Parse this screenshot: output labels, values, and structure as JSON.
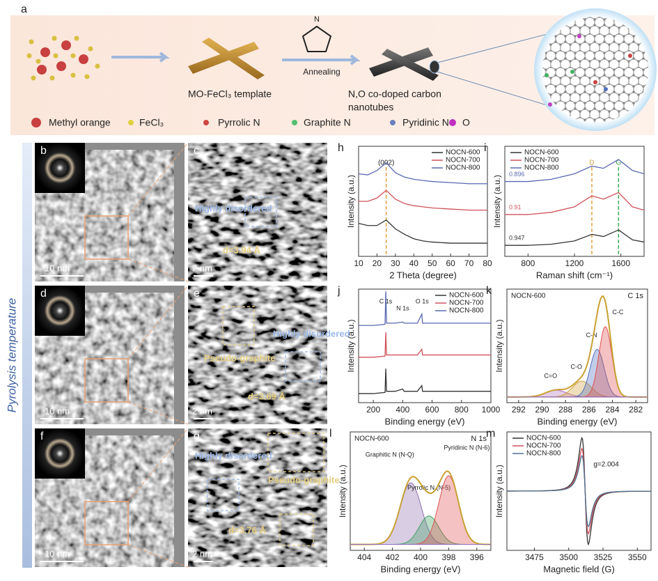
{
  "panel_a": {
    "label": "a",
    "pyrrole_atom": "N",
    "template": "MO-FeCl₃ template",
    "step": "Annealing",
    "product": [
      "N,O co-doped carbon",
      "nanotubes"
    ],
    "legend": [
      "Methyl orange",
      "FeCl₃",
      "Pyrrolic N",
      "Graphite N",
      "Pyridinic N",
      "O"
    ]
  },
  "side_label": "Pyrolysis temperature",
  "tem": [
    {
      "label": "b",
      "scale_bar": "10 nm"
    },
    {
      "label": "c",
      "scale_bar": "2 nm",
      "annotations": [
        "Highly disordered",
        "d=3.94 Å"
      ]
    },
    {
      "label": "d",
      "scale_bar": "10 nm"
    },
    {
      "label": "e",
      "scale_bar": "2 nm",
      "annotations": [
        "Pseudo-graphite",
        "Highly disordered",
        "d=3.69 Å"
      ]
    },
    {
      "label": "f",
      "scale_bar": "10 nm"
    },
    {
      "label": "g",
      "scale_bar": "2 nm",
      "annotations": [
        "Highly disordered",
        "Pseudo-graphite",
        "d=3.76 Å"
      ]
    }
  ],
  "chart_data": [
    {
      "type": "line",
      "label": "h",
      "xlabel": "2 Theta (degree)",
      "ylabel": "Intensity (a.u.)",
      "xlim": [
        10,
        80
      ],
      "xticks": [
        10,
        20,
        30,
        40,
        50,
        60,
        70,
        80
      ],
      "ylim": [
        0,
        1
      ],
      "legend": "upper right",
      "vlines": [
        {
          "x": 25,
          "label": "(002)",
          "color": "#e0a040"
        }
      ],
      "x": [
        10,
        15,
        20,
        25,
        30,
        35,
        40,
        45,
        50,
        60,
        70,
        80
      ],
      "series": [
        {
          "name": "NOCN-600",
          "color": "#333333",
          "values": [
            0.3,
            0.28,
            0.28,
            0.33,
            0.25,
            0.2,
            0.16,
            0.14,
            0.13,
            0.12,
            0.12,
            0.12
          ]
        },
        {
          "name": "NOCN-700",
          "color": "#d0505a",
          "values": [
            0.5,
            0.5,
            0.53,
            0.6,
            0.52,
            0.48,
            0.46,
            0.45,
            0.44,
            0.43,
            0.42,
            0.42
          ]
        },
        {
          "name": "NOCN-800",
          "color": "#5a68b0",
          "values": [
            0.75,
            0.74,
            0.78,
            0.85,
            0.76,
            0.72,
            0.7,
            0.69,
            0.68,
            0.67,
            0.66,
            0.66
          ]
        }
      ]
    },
    {
      "type": "line",
      "label": "i",
      "xlabel": "Raman shift (cm⁻¹)",
      "ylabel": "Intensity (a.u.)",
      "xlim": [
        600,
        1800
      ],
      "xticks": [
        800,
        1200,
        1600
      ],
      "ylim": [
        0,
        1
      ],
      "legend": "upper left",
      "vlines": [
        {
          "x": 1350,
          "label": "D",
          "color": "#e0a040"
        },
        {
          "x": 1580,
          "label": "G",
          "color": "#3aaa50"
        }
      ],
      "x": [
        600,
        800,
        1000,
        1200,
        1350,
        1450,
        1580,
        1700,
        1800
      ],
      "series": [
        {
          "name": "NOCN-600",
          "color": "#333333",
          "ratio": 0.947,
          "values": [
            0.1,
            0.1,
            0.11,
            0.14,
            0.2,
            0.18,
            0.24,
            0.15,
            0.13
          ]
        },
        {
          "name": "NOCN-700",
          "color": "#d0505a",
          "ratio": 0.91,
          "values": [
            0.38,
            0.38,
            0.4,
            0.45,
            0.55,
            0.52,
            0.58,
            0.45,
            0.42
          ]
        },
        {
          "name": "NOCN-800",
          "color": "#5a68b0",
          "ratio": 0.896,
          "values": [
            0.68,
            0.68,
            0.7,
            0.75,
            0.82,
            0.8,
            0.88,
            0.78,
            0.75
          ]
        }
      ]
    },
    {
      "type": "line",
      "label": "j",
      "xlabel": "Binding energy (eV)",
      "ylabel": "Intensity (a.u.)",
      "xlim": [
        100,
        1000
      ],
      "xticks": [
        200,
        400,
        600,
        800,
        1000
      ],
      "ylim": [
        0,
        1
      ],
      "legend": "upper right",
      "peak_labels": [
        {
          "text": "C 1s",
          "x": 285
        },
        {
          "text": "N 1s",
          "x": 400
        },
        {
          "text": "O 1s",
          "x": 532
        }
      ],
      "x": [
        100,
        200,
        280,
        285,
        290,
        350,
        400,
        410,
        500,
        530,
        535,
        600,
        800,
        1000
      ],
      "series": [
        {
          "name": "NOCN-600",
          "color": "#333333",
          "values": [
            0.08,
            0.08,
            0.09,
            0.3,
            0.1,
            0.1,
            0.12,
            0.1,
            0.1,
            0.15,
            0.1,
            0.1,
            0.1,
            0.1
          ]
        },
        {
          "name": "NOCN-700",
          "color": "#d0505a",
          "values": [
            0.4,
            0.4,
            0.41,
            0.62,
            0.42,
            0.42,
            0.42,
            0.42,
            0.42,
            0.47,
            0.42,
            0.42,
            0.42,
            0.42
          ]
        },
        {
          "name": "NOCN-800",
          "color": "#5a68b0",
          "values": [
            0.68,
            0.68,
            0.69,
            0.98,
            0.7,
            0.7,
            0.71,
            0.7,
            0.7,
            0.78,
            0.7,
            0.7,
            0.7,
            0.7
          ]
        }
      ]
    },
    {
      "type": "peakfit",
      "label": "k",
      "sample": "NOCN-600",
      "core_level": "C 1s",
      "xlabel": "Binding energy (eV)",
      "ylabel": "Intensity (a.u.)",
      "xlim": [
        293,
        281
      ],
      "xticks": [
        292,
        290,
        288,
        286,
        284,
        282
      ],
      "ylim": [
        0,
        1
      ],
      "peaks": [
        {
          "name": "C=O",
          "center": 288.8,
          "height": 0.06,
          "width": 0.9,
          "color": "#b070c0"
        },
        {
          "name": "C-O",
          "center": 286.6,
          "height": 0.14,
          "width": 0.8,
          "color": "#d0a040"
        },
        {
          "name": "C-N",
          "center": 285.3,
          "height": 0.42,
          "width": 0.6,
          "color": "#5070c0"
        },
        {
          "name": "C-C",
          "center": 284.6,
          "height": 0.62,
          "width": 0.55,
          "color": "#e05050"
        }
      ]
    },
    {
      "type": "peakfit",
      "label": "l",
      "sample": "NOCN-600",
      "core_level": "N 1s",
      "xlabel": "Binding energy (eV)",
      "ylabel": "Intensity (a.u.)",
      "xlim": [
        405,
        395
      ],
      "xticks": [
        404,
        402,
        400,
        398,
        396
      ],
      "ylim": [
        0,
        1
      ],
      "peaks": [
        {
          "name": "Graphitic N (N-Q)",
          "center": 400.7,
          "height": 0.52,
          "width": 0.75,
          "color": "#9070b0"
        },
        {
          "name": "Pyrrolic N (N-5)",
          "center": 399.4,
          "height": 0.24,
          "width": 0.7,
          "color": "#40a060"
        },
        {
          "name": "Pyridinic N (N-6)",
          "center": 398.0,
          "height": 0.58,
          "width": 0.7,
          "color": "#e05050"
        }
      ]
    },
    {
      "type": "epr",
      "label": "m",
      "xlabel": "Magnetic field (G)",
      "ylabel": "Intensity (a.u.)",
      "annotation": "g=2.004",
      "xlim": [
        3455,
        3560
      ],
      "xticks": [
        3475,
        3500,
        3525,
        3550
      ],
      "ylim": [
        -1,
        1
      ],
      "legend": "upper left",
      "center": 3512,
      "width": 4,
      "series": [
        {
          "name": "NOCN-600",
          "color": "#333333",
          "amplitude": 0.9
        },
        {
          "name": "NOCN-700",
          "color": "#d0505a",
          "amplitude": 0.72
        },
        {
          "name": "NOCN-800",
          "color": "#4a7090",
          "amplitude": 0.6
        }
      ]
    }
  ]
}
